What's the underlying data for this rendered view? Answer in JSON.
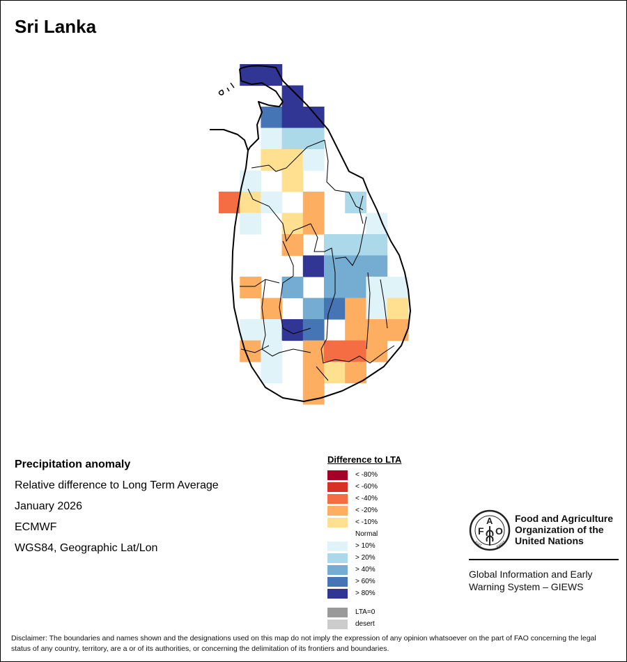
{
  "title": "Sri Lanka",
  "info": {
    "heading": "Precipitation anomaly",
    "subtitle": "Relative difference to Long Term Average",
    "period": "January 2026",
    "source": "ECMWF",
    "projection": "WGS84, Geographic Lat/Lon"
  },
  "legend": {
    "title": "Difference to LTA",
    "classes": [
      {
        "label": "< -80%",
        "color": "#a50026"
      },
      {
        "label": "< -60%",
        "color": "#d73027"
      },
      {
        "label": "< -40%",
        "color": "#f46d43"
      },
      {
        "label": "< -20%",
        "color": "#fdae61"
      },
      {
        "label": "< -10%",
        "color": "#fee090"
      },
      {
        "label": "Normal",
        "color": "#ffffff"
      },
      {
        "label": "> 10%",
        "color": "#e0f3f8"
      },
      {
        "label": "> 20%",
        "color": "#abd9e9"
      },
      {
        "label": "> 40%",
        "color": "#74add1"
      },
      {
        "label": "> 60%",
        "color": "#4575b4"
      },
      {
        "label": "> 80%",
        "color": "#313695"
      }
    ],
    "extra": [
      {
        "label": "LTA=0",
        "color": "#999999"
      },
      {
        "label": "desert",
        "color": "#cccccc"
      }
    ]
  },
  "anomaly_grid": {
    "description_classes": "grid rows north to south, columns west to east; values are legend class labels",
    "rows": [
      [
        null,
        "> 80%",
        "> 80%",
        null,
        null,
        null,
        null,
        null,
        null
      ],
      [
        null,
        null,
        null,
        "> 80%",
        null,
        null,
        null,
        null,
        null
      ],
      [
        null,
        null,
        "> 60%",
        "> 80%",
        "> 80%",
        null,
        null,
        null,
        null
      ],
      [
        null,
        null,
        "> 10%",
        "> 20%",
        "> 20%",
        null,
        null,
        null,
        null
      ],
      [
        null,
        null,
        "< -10%",
        "< -10%",
        "> 10%",
        null,
        null,
        null,
        null
      ],
      [
        null,
        "> 10%",
        null,
        "< -10%",
        null,
        null,
        null,
        null,
        null
      ],
      [
        "< -40%",
        "< -10%",
        "> 10%",
        null,
        "< -20%",
        null,
        "> 20%",
        null,
        null
      ],
      [
        null,
        "> 10%",
        null,
        "< -10%",
        "< -20%",
        null,
        null,
        "> 10%",
        null
      ],
      [
        null,
        null,
        null,
        "< -20%",
        null,
        "> 20%",
        "> 20%",
        "> 20%",
        null
      ],
      [
        null,
        null,
        null,
        null,
        "> 80%",
        "> 40%",
        "> 40%",
        "> 40%",
        null
      ],
      [
        null,
        "< -20%",
        null,
        "> 40%",
        null,
        "> 40%",
        "> 40%",
        "> 10%",
        "> 10%"
      ],
      [
        null,
        null,
        "< -20%",
        null,
        "> 40%",
        "> 60%",
        "< -20%",
        "> 10%",
        "< -10%"
      ],
      [
        null,
        "> 10%",
        "> 10%",
        "> 80%",
        "> 60%",
        null,
        "< -20%",
        "< -20%",
        "< -20%"
      ],
      [
        null,
        "< -20%",
        "> 10%",
        null,
        "< -20%",
        "< -40%",
        "< -40%",
        "< -20%",
        null
      ],
      [
        null,
        null,
        "> 10%",
        null,
        "< -20%",
        "< -10%",
        "< -20%",
        null,
        null
      ],
      [
        null,
        null,
        null,
        null,
        "< -20%",
        null,
        null,
        null,
        null
      ]
    ]
  },
  "fao": {
    "logo_text": "FAO FIAT PANIS",
    "name_line1": "Food and Agriculture",
    "name_line2": "Organization of the",
    "name_line3": "United Nations",
    "giews_line1": "Global Information and Early",
    "giews_line2": "Warning System – GIEWS"
  },
  "disclaimer": "Disclaimer: The boundaries and names shown and the designations used on this map do not imply the expression of any opinion whatsoever on the part of FAO concerning the legal status of any country, territory, are a or of its authorities, or concerning the delimitation of its frontiers and boundaries."
}
